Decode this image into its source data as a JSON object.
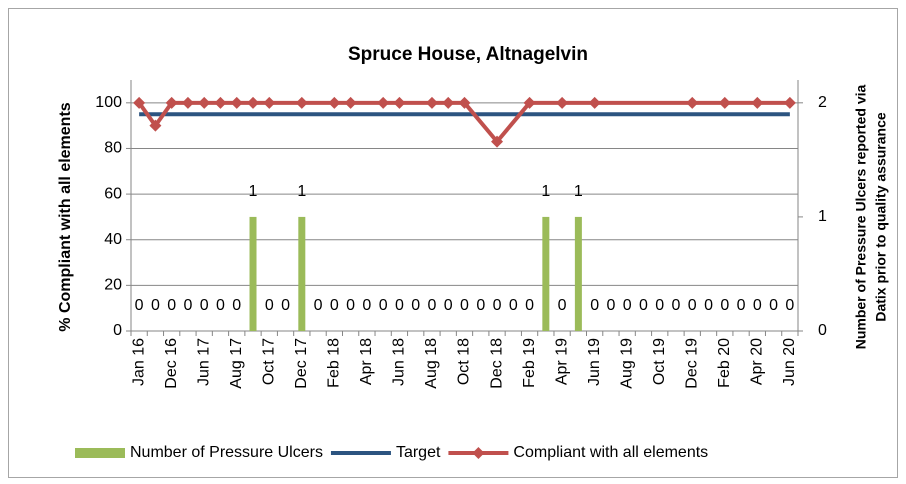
{
  "chart_data": {
    "type": "combo",
    "title": "Spruce House, Altnagelvin",
    "ylabel": "% Compliant with all elements",
    "y2label": [
      "Number of Pressure Ulcers reported via",
      "Datix prior to quality assurance"
    ],
    "categories": [
      "Jan 16",
      null,
      "Dec 16",
      null,
      "Jun 17",
      null,
      "Aug 17",
      null,
      "Oct 17",
      null,
      "Dec 17",
      null,
      "Feb 18",
      null,
      "Apr 18",
      null,
      "Jun 18",
      null,
      "Aug 18",
      null,
      "Oct 18",
      null,
      "Dec 18",
      null,
      "Feb 19",
      null,
      "Apr 19",
      null,
      "Jun 19",
      null,
      "Aug 19",
      null,
      "Oct 19",
      null,
      "Dec 19",
      null,
      "Feb 20",
      null,
      "Apr 20",
      null,
      "Jun 20"
    ],
    "series": [
      {
        "name": "Number of Pressure Ulcers",
        "type": "bar",
        "axis": "y2",
        "color": "#9bbb59",
        "values": [
          0,
          0,
          0,
          0,
          0,
          0,
          0,
          1,
          0,
          0,
          1,
          0,
          0,
          0,
          0,
          0,
          0,
          0,
          0,
          0,
          0,
          0,
          0,
          0,
          0,
          1,
          0,
          1,
          0,
          0,
          0,
          0,
          0,
          0,
          0,
          0,
          0,
          0,
          0,
          0,
          0
        ]
      },
      {
        "name": "Target",
        "type": "line",
        "color": "#2c5480",
        "values": [
          95,
          95,
          95,
          95,
          95,
          95,
          95,
          95,
          95,
          95,
          95,
          95,
          95,
          95,
          95,
          95,
          95,
          95,
          95,
          95,
          95,
          95,
          95,
          95,
          95,
          95,
          95,
          95,
          95,
          95,
          95,
          95,
          95,
          95,
          95,
          95,
          95,
          95,
          95,
          95,
          95
        ]
      },
      {
        "name": "Compliant with all elements",
        "type": "line",
        "marker": "diamond",
        "color": "#c0504d",
        "values": [
          100,
          90,
          100,
          100,
          100,
          100,
          100,
          100,
          100,
          null,
          100,
          null,
          100,
          100,
          null,
          100,
          100,
          null,
          100,
          100,
          100,
          null,
          83,
          null,
          100,
          null,
          100,
          null,
          100,
          null,
          null,
          null,
          null,
          null,
          100,
          null,
          100,
          null,
          100,
          null,
          100
        ]
      }
    ],
    "span_gaps": true,
    "ylim": [
      0,
      110
    ],
    "yticks": [
      0,
      20,
      40,
      60,
      80,
      100
    ],
    "y2lim": [
      0,
      2.2
    ],
    "y2ticks": [
      0,
      1,
      2
    ],
    "grid": true,
    "legend": "bottom"
  }
}
